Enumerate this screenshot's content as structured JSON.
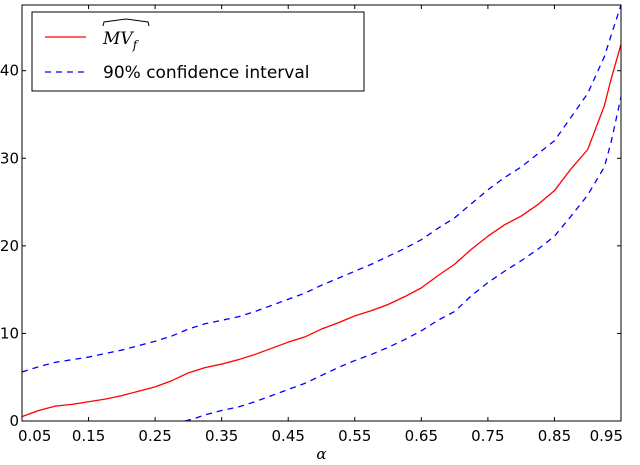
{
  "chart_data": {
    "type": "line",
    "xlabel": "α",
    "ylabel": "",
    "title": "",
    "xlim": [
      0.05,
      0.95
    ],
    "ylim": [
      0,
      47.5
    ],
    "xticks": [
      "0.05",
      "0.15",
      "0.25",
      "0.35",
      "0.45",
      "0.55",
      "0.65",
      "0.75",
      "0.85",
      "0.95"
    ],
    "yticks": [
      "0",
      "10",
      "20",
      "30",
      "40"
    ],
    "legend_position": "top-left",
    "grid": false,
    "series": [
      {
        "name": "MV_f (estimate, hat)",
        "legend_label_main": "MV",
        "legend_label_sub": "f",
        "style": "solid",
        "color": "#ff0000",
        "x": [
          0.05,
          0.075,
          0.1,
          0.125,
          0.15,
          0.175,
          0.2,
          0.225,
          0.25,
          0.275,
          0.3,
          0.325,
          0.35,
          0.375,
          0.4,
          0.425,
          0.45,
          0.475,
          0.5,
          0.525,
          0.55,
          0.575,
          0.6,
          0.625,
          0.65,
          0.675,
          0.7,
          0.725,
          0.75,
          0.775,
          0.8,
          0.825,
          0.85,
          0.875,
          0.9,
          0.925,
          0.935,
          0.95
        ],
        "y": [
          0.5,
          1.2,
          1.7,
          1.9,
          2.2,
          2.5,
          2.9,
          3.4,
          3.9,
          4.6,
          5.5,
          6.1,
          6.5,
          7.0,
          7.6,
          8.3,
          9.0,
          9.6,
          10.5,
          11.2,
          12.0,
          12.6,
          13.3,
          14.2,
          15.2,
          16.6,
          17.9,
          19.6,
          21.1,
          22.4,
          23.4,
          24.7,
          26.3,
          28.8,
          31.0,
          36.0,
          39.0,
          43.0
        ]
      },
      {
        "name": "90% confidence interval",
        "style": "dashed",
        "color": "#0000ff",
        "x": [
          0.05,
          0.075,
          0.1,
          0.125,
          0.15,
          0.175,
          0.2,
          0.225,
          0.25,
          0.275,
          0.3,
          0.325,
          0.35,
          0.375,
          0.4,
          0.425,
          0.45,
          0.475,
          0.5,
          0.525,
          0.55,
          0.575,
          0.6,
          0.625,
          0.65,
          0.675,
          0.7,
          0.725,
          0.75,
          0.775,
          0.8,
          0.825,
          0.85,
          0.875,
          0.9,
          0.925,
          0.935,
          0.95
        ],
        "y": [
          5.6,
          6.2,
          6.7,
          7.0,
          7.3,
          7.7,
          8.1,
          8.6,
          9.1,
          9.7,
          10.5,
          11.1,
          11.5,
          11.9,
          12.5,
          13.2,
          13.9,
          14.6,
          15.5,
          16.3,
          17.1,
          17.9,
          18.8,
          19.7,
          20.7,
          22.0,
          23.2,
          24.8,
          26.4,
          27.8,
          29.0,
          30.5,
          32.0,
          34.7,
          37.4,
          41.6,
          44.0,
          47.5
        ]
      },
      {
        "name": "90% confidence interval (lower)",
        "style": "dashed",
        "color": "#0000ff",
        "x": [
          0.295,
          0.31,
          0.325,
          0.35,
          0.375,
          0.4,
          0.425,
          0.45,
          0.475,
          0.5,
          0.525,
          0.55,
          0.575,
          0.6,
          0.625,
          0.65,
          0.675,
          0.7,
          0.725,
          0.75,
          0.775,
          0.8,
          0.825,
          0.85,
          0.875,
          0.9,
          0.925,
          0.935,
          0.95
        ],
        "y": [
          0.0,
          0.3,
          0.7,
          1.2,
          1.6,
          2.2,
          2.9,
          3.6,
          4.3,
          5.2,
          6.1,
          6.9,
          7.6,
          8.4,
          9.3,
          10.3,
          11.5,
          12.5,
          14.3,
          15.8,
          17.1,
          18.3,
          19.6,
          21.1,
          23.4,
          25.8,
          29.0,
          31.8,
          37.0
        ]
      }
    ]
  }
}
